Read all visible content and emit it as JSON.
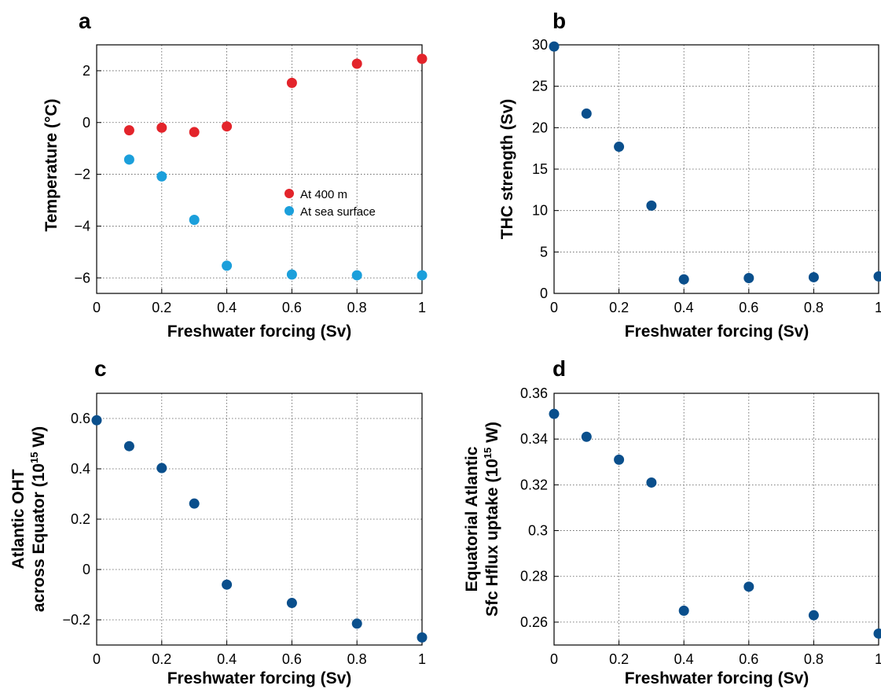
{
  "colors": {
    "red": "#e3242b",
    "cyan": "#1b9fdb",
    "navy": "#0a4f8c"
  },
  "chart_data": [
    {
      "panel": "a",
      "type": "scatter",
      "xlabel": "Freshwater forcing (Sv)",
      "ylabel": "Temperature (°C)",
      "xlim": [
        0,
        1
      ],
      "ylim": [
        -6.6,
        3
      ],
      "xticks": [
        0,
        0.2,
        0.4,
        0.6,
        0.8,
        1
      ],
      "xtick_labels": [
        "0",
        "0.2",
        "0.4",
        "0.6",
        "0.8",
        "1"
      ],
      "yticks": [
        -6,
        -4,
        -2,
        0,
        2
      ],
      "ytick_labels": [
        "−6",
        "−4",
        "−2",
        "0",
        "2"
      ],
      "grid": true,
      "legend": "center-right",
      "series": [
        {
          "name": "At 400 m",
          "color": "#e3242b",
          "x": [
            0.1,
            0.2,
            0.3,
            0.4,
            0.6,
            0.8,
            1.0
          ],
          "y": [
            -0.3,
            -0.2,
            -0.37,
            -0.15,
            1.53,
            2.27,
            2.46
          ]
        },
        {
          "name": "At sea surface",
          "color": "#1b9fdb",
          "x": [
            0.1,
            0.2,
            0.3,
            0.4,
            0.6,
            0.8,
            1.0
          ],
          "y": [
            -1.43,
            -2.08,
            -3.76,
            -5.53,
            -5.87,
            -5.9,
            -5.9
          ]
        }
      ]
    },
    {
      "panel": "b",
      "type": "scatter",
      "xlabel": "Freshwater forcing (Sv)",
      "ylabel": "THC strength (Sv)",
      "xlim": [
        0,
        1
      ],
      "ylim": [
        0,
        30
      ],
      "xticks": [
        0,
        0.2,
        0.4,
        0.6,
        0.8,
        1
      ],
      "xtick_labels": [
        "0",
        "0.2",
        "0.4",
        "0.6",
        "0.8",
        "1"
      ],
      "yticks": [
        0,
        5,
        10,
        15,
        20,
        25,
        30
      ],
      "ytick_labels": [
        "0",
        "5",
        "10",
        "15",
        "20",
        "25",
        "30"
      ],
      "grid": true,
      "series": [
        {
          "color": "#0a4f8c",
          "x": [
            0,
            0.1,
            0.2,
            0.3,
            0.4,
            0.6,
            0.8,
            1.0
          ],
          "y": [
            29.8,
            21.7,
            17.7,
            10.6,
            1.7,
            1.85,
            1.95,
            2.05
          ]
        }
      ]
    },
    {
      "panel": "c",
      "type": "scatter",
      "xlabel": "Freshwater forcing (Sv)",
      "ylabel_lines": [
        "Atlantic OHT",
        "across Equator (10",
        "15",
        " W)"
      ],
      "xlim": [
        0,
        1
      ],
      "ylim": [
        -0.3,
        0.7
      ],
      "xticks": [
        0,
        0.2,
        0.4,
        0.6,
        0.8,
        1
      ],
      "xtick_labels": [
        "0",
        "0.2",
        "0.4",
        "0.6",
        "0.8",
        "1"
      ],
      "yticks": [
        -0.2,
        0,
        0.2,
        0.4,
        0.6
      ],
      "ytick_labels": [
        "−0.2",
        "0",
        "0.2",
        "0.4",
        "0.6"
      ],
      "grid": true,
      "series": [
        {
          "color": "#0a4f8c",
          "x": [
            0,
            0.1,
            0.2,
            0.3,
            0.4,
            0.6,
            0.8,
            1.0
          ],
          "y": [
            0.593,
            0.49,
            0.403,
            0.262,
            -0.06,
            -0.133,
            -0.215,
            -0.27
          ]
        }
      ]
    },
    {
      "panel": "d",
      "type": "scatter",
      "xlabel": "Freshwater forcing (Sv)",
      "ylabel_lines": [
        "Equatorial Atlantic",
        "Sfc Hflux uptake (10",
        "15",
        " W)"
      ],
      "xlim": [
        0,
        1
      ],
      "ylim": [
        0.25,
        0.36
      ],
      "xticks": [
        0,
        0.2,
        0.4,
        0.6,
        0.8,
        1
      ],
      "xtick_labels": [
        "0",
        "0.2",
        "0.4",
        "0.6",
        "0.8",
        "1"
      ],
      "yticks": [
        0.26,
        0.28,
        0.3,
        0.32,
        0.34,
        0.36
      ],
      "ytick_labels": [
        "0.26",
        "0.28",
        "0.3",
        "0.32",
        "0.34",
        "0.36"
      ],
      "grid": true,
      "series": [
        {
          "color": "#0a4f8c",
          "x": [
            0,
            0.1,
            0.2,
            0.3,
            0.4,
            0.6,
            0.8,
            1.0
          ],
          "y": [
            0.351,
            0.341,
            0.331,
            0.321,
            0.265,
            0.2755,
            0.263,
            0.255
          ]
        }
      ]
    }
  ]
}
